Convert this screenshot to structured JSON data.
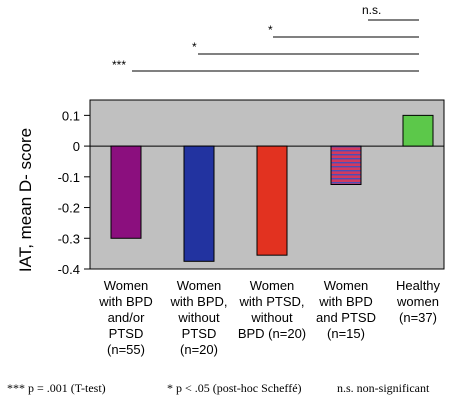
{
  "chart_data": {
    "type": "bar",
    "ylabel": "IAT, mean D- score",
    "ylim": [
      -0.4,
      0.15
    ],
    "y_ticks": [
      0.1,
      0,
      -0.1,
      -0.2,
      -0.3,
      -0.4
    ],
    "y_tick_labels": [
      "0.1",
      "0",
      "-0.1",
      "-0.2",
      "-0.3",
      "-0.4"
    ],
    "plot_background": "#c0c0c0",
    "categories": [
      {
        "lines": [
          "Women",
          "with BPD",
          "and/or",
          "PTSD",
          "(n=55)"
        ],
        "value": -0.3,
        "color": "#8b0f7e",
        "pattern": "solid"
      },
      {
        "lines": [
          "Women",
          "with BPD,",
          "without",
          "PTSD",
          "(n=20)"
        ],
        "value": -0.375,
        "color": "#2233a0",
        "pattern": "solid"
      },
      {
        "lines": [
          "Women",
          "with PTSD,",
          "without",
          "BPD (n=20)"
        ],
        "value": -0.355,
        "color": "#e23220",
        "pattern": "solid"
      },
      {
        "lines": [
          "Women",
          "with BPD",
          "and PTSD",
          "(n=15)"
        ],
        "value": -0.125,
        "color": "#d23a5e",
        "pattern": "striped"
      },
      {
        "lines": [
          "Healthy",
          "women",
          "(n=37)"
        ],
        "value": 0.1,
        "color": "#5cc84a",
        "pattern": "solid"
      }
    ],
    "significance": [
      {
        "label": "n.s."
      },
      {
        "label": "*"
      },
      {
        "label": "*"
      },
      {
        "label": "***"
      }
    ]
  },
  "footnotes": {
    "t_test": "*** p = .001 (T-test)",
    "post_hoc": "* p < .05 (post-hoc Scheffé)",
    "ns": "n.s. non-significant"
  }
}
